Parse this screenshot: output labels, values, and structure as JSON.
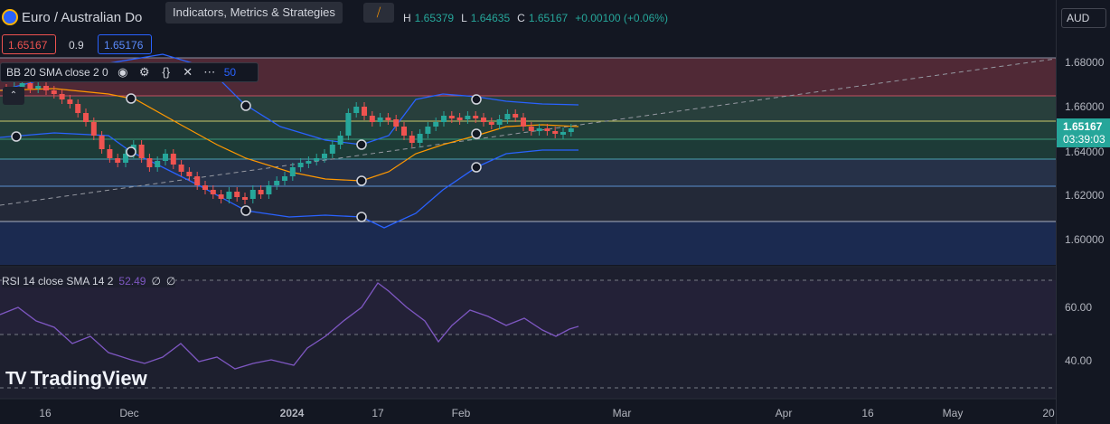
{
  "symbol": {
    "name_fragment": "Euro / Australian Do",
    "tooltip": "Indicators, Metrics & Strategies",
    "ohlc": {
      "h_label": "H",
      "h": "1.65379",
      "l_label": "L",
      "l": "1.64635",
      "c_label": "C",
      "c": "1.65167",
      "change": "+0.00100 (+0.06%)"
    },
    "bid": "1.65167",
    "spread": "0.9",
    "ask": "1.65176"
  },
  "bb_legend": {
    "label": "BB 20 SMA close 2 0",
    "value_fragment": "50"
  },
  "rsi_legend": {
    "label": "RSI 14 close SMA 14 2",
    "value": "52.49",
    "extra1": "∅",
    "extra2": "∅"
  },
  "price_scale": {
    "currency": "AUD",
    "ticks": [
      "1.68000",
      "1.66000",
      "1.64000",
      "1.62000",
      "1.60000"
    ],
    "last_price": "1.65167",
    "countdown": "03:39:03"
  },
  "rsi_scale": {
    "ticks": [
      "60.00",
      "40.00"
    ]
  },
  "time_axis": [
    "16",
    "Dec",
    "2024",
    "17",
    "Feb",
    "Mar",
    "Apr",
    "16",
    "May",
    "20"
  ],
  "watermark": {
    "text": "TradingView"
  },
  "colors": {
    "up": "#26a69a",
    "down": "#ef5350",
    "bb_band": "#2962ff",
    "bb_basis": "#ff9800",
    "rsi": "#7e57c2",
    "last_price": "#26a69a"
  }
}
